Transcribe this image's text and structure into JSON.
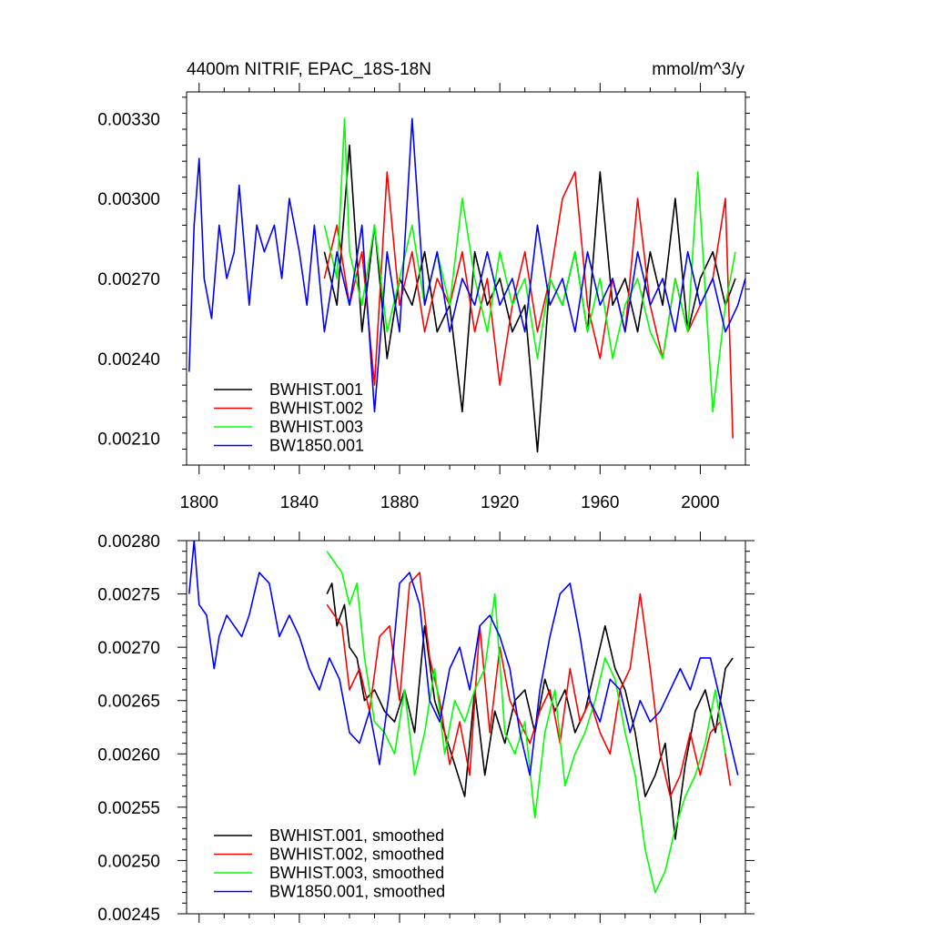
{
  "chart_data": [
    {
      "type": "line",
      "title_left": "4400m NITRIF, EPAC_18S-18N",
      "title_right": "mmol/m^3/y",
      "xlabel": "",
      "ylabel": "",
      "xlim": [
        1795,
        2018
      ],
      "ylim": [
        0.002,
        0.0034
      ],
      "xticks": [
        1800,
        1840,
        1880,
        1920,
        1960,
        2000
      ],
      "xtick_labels": [
        "1800",
        "1840",
        "1880",
        "1920",
        "1960",
        "2000"
      ],
      "yticks": [
        0.0021,
        0.0024,
        0.0027,
        0.003,
        0.0033
      ],
      "ytick_labels": [
        "0.00210",
        "0.00240",
        "0.00270",
        "0.00300",
        "0.00330"
      ],
      "legend_position": "bottom-left",
      "series": [
        {
          "name": "BWHIST.001",
          "color": "#000000",
          "x": [
            1850,
            1855,
            1860,
            1865,
            1870,
            1875,
            1880,
            1885,
            1890,
            1895,
            1900,
            1905,
            1910,
            1915,
            1920,
            1925,
            1930,
            1935,
            1940,
            1945,
            1950,
            1955,
            1960,
            1965,
            1970,
            1975,
            1980,
            1985,
            1990,
            1995,
            2000,
            2005,
            2010,
            2014
          ],
          "values": [
            0.0028,
            0.0026,
            0.0032,
            0.0025,
            0.0029,
            0.0024,
            0.0027,
            0.0026,
            0.0028,
            0.0025,
            0.0026,
            0.0022,
            0.0028,
            0.0026,
            0.0027,
            0.0025,
            0.0026,
            0.00205,
            0.0027,
            0.0026,
            0.0028,
            0.0025,
            0.0031,
            0.0026,
            0.0027,
            0.0025,
            0.0028,
            0.0026,
            0.003,
            0.0025,
            0.0027,
            0.0028,
            0.0026,
            0.0027
          ]
        },
        {
          "name": "BWHIST.002",
          "color": "#ff0000",
          "x": [
            1850,
            1855,
            1860,
            1865,
            1870,
            1875,
            1880,
            1885,
            1890,
            1895,
            1900,
            1905,
            1910,
            1915,
            1920,
            1925,
            1930,
            1935,
            1940,
            1945,
            1950,
            1955,
            1960,
            1965,
            1970,
            1975,
            1980,
            1985,
            1990,
            1995,
            2000,
            2005,
            2010,
            2013
          ],
          "values": [
            0.0027,
            0.0029,
            0.0026,
            0.0028,
            0.0023,
            0.0031,
            0.0026,
            0.0028,
            0.0025,
            0.0027,
            0.0026,
            0.0028,
            0.0025,
            0.0027,
            0.0023,
            0.0026,
            0.0028,
            0.0025,
            0.0027,
            0.003,
            0.0031,
            0.0026,
            0.0024,
            0.0027,
            0.0025,
            0.003,
            0.0026,
            0.0024,
            0.0027,
            0.0025,
            0.0026,
            0.0027,
            0.003,
            0.0021
          ]
        },
        {
          "name": "BWHIST.003",
          "color": "#00ff00",
          "x": [
            1850,
            1855,
            1858,
            1860,
            1865,
            1870,
            1875,
            1880,
            1885,
            1890,
            1895,
            1900,
            1905,
            1910,
            1915,
            1920,
            1925,
            1930,
            1935,
            1940,
            1945,
            1950,
            1955,
            1960,
            1965,
            1970,
            1975,
            1980,
            1985,
            1990,
            1995,
            1999,
            2005,
            2010,
            2014
          ],
          "values": [
            0.0029,
            0.0027,
            0.0033,
            0.0028,
            0.0026,
            0.0029,
            0.0025,
            0.0027,
            0.0029,
            0.0026,
            0.0028,
            0.0026,
            0.003,
            0.0027,
            0.0025,
            0.0028,
            0.0026,
            0.0027,
            0.0024,
            0.0027,
            0.0026,
            0.0028,
            0.0025,
            0.0027,
            0.0024,
            0.0026,
            0.0027,
            0.0025,
            0.0024,
            0.0027,
            0.0025,
            0.0031,
            0.0022,
            0.0026,
            0.0028
          ]
        },
        {
          "name": "BW1850.001",
          "color": "#0000ff",
          "x": [
            1796,
            1798,
            1800,
            1802,
            1805,
            1808,
            1811,
            1814,
            1816,
            1820,
            1823,
            1826,
            1830,
            1833,
            1836,
            1840,
            1843,
            1846,
            1850,
            1855,
            1860,
            1865,
            1870,
            1875,
            1880,
            1885,
            1890,
            1895,
            1900,
            1905,
            1910,
            1915,
            1920,
            1925,
            1930,
            1935,
            1940,
            1945,
            1950,
            1955,
            1960,
            1965,
            1970,
            1975,
            1980,
            1985,
            1990,
            1995,
            2000,
            2005,
            2010,
            2015,
            2018
          ],
          "values": [
            0.00235,
            0.0029,
            0.00315,
            0.0027,
            0.00255,
            0.0029,
            0.0027,
            0.0028,
            0.00305,
            0.0026,
            0.0029,
            0.0028,
            0.0029,
            0.0027,
            0.003,
            0.0028,
            0.0026,
            0.0029,
            0.0025,
            0.0028,
            0.0026,
            0.0029,
            0.0022,
            0.0028,
            0.0025,
            0.0033,
            0.0026,
            0.0028,
            0.0025,
            0.0027,
            0.0026,
            0.0028,
            0.0026,
            0.0027,
            0.0025,
            0.0029,
            0.0026,
            0.0027,
            0.0025,
            0.0028,
            0.0026,
            0.0027,
            0.0025,
            0.0028,
            0.0026,
            0.0027,
            0.0025,
            0.0028,
            0.0026,
            0.0027,
            0.0025,
            0.0026,
            0.0027
          ]
        }
      ]
    },
    {
      "type": "line",
      "xlabel": "",
      "ylabel": "",
      "xlim": [
        1795,
        2018
      ],
      "ylim": [
        0.00245,
        0.0028
      ],
      "xticks": [
        1800,
        1840,
        1880,
        1920,
        1960,
        2000
      ],
      "yticks": [
        0.00245,
        0.0025,
        0.00255,
        0.0026,
        0.00265,
        0.0027,
        0.00275,
        0.0028
      ],
      "ytick_labels": [
        "0.00245",
        "0.00250",
        "0.00255",
        "0.00260",
        "0.00265",
        "0.00270",
        "0.00275",
        "0.00280"
      ],
      "legend_position": "bottom-left",
      "series": [
        {
          "name": "BWHIST.001, smoothed",
          "color": "#000000",
          "x": [
            1851,
            1853,
            1855,
            1858,
            1860,
            1863,
            1866,
            1870,
            1874,
            1878,
            1882,
            1886,
            1890,
            1894,
            1898,
            1902,
            1906,
            1910,
            1914,
            1918,
            1922,
            1926,
            1930,
            1934,
            1938,
            1942,
            1946,
            1950,
            1954,
            1958,
            1962,
            1966,
            1970,
            1974,
            1978,
            1982,
            1986,
            1990,
            1994,
            1998,
            2002,
            2006,
            2010,
            2013
          ],
          "values": [
            0.00275,
            0.00276,
            0.00272,
            0.00274,
            0.0027,
            0.00269,
            0.00265,
            0.00266,
            0.00264,
            0.00263,
            0.00266,
            0.00262,
            0.00272,
            0.00265,
            0.00262,
            0.00259,
            0.00256,
            0.00266,
            0.00258,
            0.00264,
            0.00261,
            0.00265,
            0.00266,
            0.00262,
            0.00267,
            0.00264,
            0.00266,
            0.00262,
            0.00264,
            0.00268,
            0.00272,
            0.00268,
            0.00266,
            0.00262,
            0.00256,
            0.00258,
            0.00261,
            0.00252,
            0.00259,
            0.00264,
            0.00266,
            0.00262,
            0.00268,
            0.00269
          ]
        },
        {
          "name": "BWHIST.002, smoothed",
          "color": "#ff0000",
          "x": [
            1851,
            1854,
            1857,
            1860,
            1864,
            1868,
            1872,
            1876,
            1880,
            1884,
            1888,
            1892,
            1896,
            1900,
            1904,
            1908,
            1912,
            1916,
            1920,
            1924,
            1928,
            1932,
            1936,
            1940,
            1944,
            1948,
            1952,
            1956,
            1960,
            1964,
            1968,
            1972,
            1976,
            1980,
            1984,
            1988,
            1992,
            1996,
            2000,
            2004,
            2008,
            2012
          ],
          "values": [
            0.00274,
            0.00273,
            0.00272,
            0.00266,
            0.00268,
            0.00264,
            0.00271,
            0.00272,
            0.00265,
            0.00276,
            0.00277,
            0.00269,
            0.00265,
            0.00259,
            0.00263,
            0.00258,
            0.00272,
            0.00262,
            0.0027,
            0.00265,
            0.00263,
            0.00261,
            0.00264,
            0.00266,
            0.00261,
            0.00268,
            0.00263,
            0.00265,
            0.00262,
            0.0026,
            0.00266,
            0.00268,
            0.00275,
            0.00268,
            0.0026,
            0.00256,
            0.00258,
            0.00262,
            0.00258,
            0.00262,
            0.00263,
            0.00257
          ]
        },
        {
          "name": "BWHIST.003, smoothed",
          "color": "#00ff00",
          "x": [
            1851,
            1854,
            1857,
            1860,
            1863,
            1866,
            1870,
            1874,
            1878,
            1882,
            1886,
            1890,
            1894,
            1898,
            1902,
            1906,
            1910,
            1914,
            1918,
            1922,
            1926,
            1930,
            1934,
            1938,
            1942,
            1946,
            1950,
            1954,
            1958,
            1962,
            1966,
            1970,
            1974,
            1978,
            1982,
            1986,
            1990,
            1994,
            1998,
            2002,
            2006,
            2010
          ],
          "values": [
            0.00279,
            0.00278,
            0.00277,
            0.00274,
            0.00276,
            0.00269,
            0.00263,
            0.00262,
            0.0026,
            0.00266,
            0.00258,
            0.00262,
            0.00268,
            0.0026,
            0.00265,
            0.00263,
            0.00266,
            0.00268,
            0.00275,
            0.00262,
            0.0026,
            0.00263,
            0.00254,
            0.00262,
            0.00266,
            0.00257,
            0.0026,
            0.00262,
            0.00265,
            0.00269,
            0.00267,
            0.00262,
            0.00258,
            0.00251,
            0.00247,
            0.00249,
            0.00253,
            0.00256,
            0.00258,
            0.00261,
            0.00266,
            0.0026
          ]
        },
        {
          "name": "BW1850.001, smoothed",
          "color": "#0000ff",
          "x": [
            1796,
            1798,
            1800,
            1803,
            1806,
            1808,
            1811,
            1814,
            1817,
            1820,
            1824,
            1828,
            1832,
            1836,
            1840,
            1844,
            1848,
            1852,
            1856,
            1860,
            1864,
            1868,
            1872,
            1876,
            1880,
            1884,
            1888,
            1892,
            1896,
            1900,
            1904,
            1908,
            1912,
            1916,
            1920,
            1924,
            1928,
            1932,
            1936,
            1940,
            1944,
            1948,
            1952,
            1956,
            1960,
            1964,
            1968,
            1972,
            1976,
            1980,
            1984,
            1988,
            1992,
            1996,
            2000,
            2004,
            2008,
            2012,
            2015
          ],
          "values": [
            0.00275,
            0.0028,
            0.00274,
            0.00273,
            0.00268,
            0.00271,
            0.00273,
            0.00272,
            0.00271,
            0.00273,
            0.00277,
            0.00276,
            0.00271,
            0.00273,
            0.00271,
            0.00268,
            0.00266,
            0.00269,
            0.00267,
            0.00262,
            0.00261,
            0.00264,
            0.00259,
            0.00266,
            0.00276,
            0.00277,
            0.00274,
            0.00265,
            0.00263,
            0.00268,
            0.0027,
            0.00266,
            0.00272,
            0.00273,
            0.00271,
            0.00268,
            0.00262,
            0.00258,
            0.00266,
            0.00271,
            0.00275,
            0.00276,
            0.00271,
            0.00265,
            0.00263,
            0.00267,
            0.00266,
            0.00262,
            0.00265,
            0.00263,
            0.00264,
            0.00266,
            0.00268,
            0.00266,
            0.00269,
            0.00269,
            0.00265,
            0.00261,
            0.00258
          ]
        }
      ]
    }
  ]
}
